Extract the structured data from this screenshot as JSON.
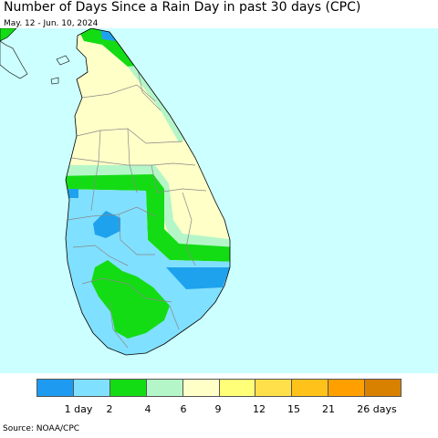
{
  "header": {
    "title": "Number of Days Since a Rain Day in past 30 days (CPC)",
    "subtitle": "May. 12 - Jun. 10, 2024"
  },
  "map": {
    "region": "Sri Lanka",
    "colors": {
      "sea": "#ccffff",
      "day_1": "#1fa2ee",
      "day_2": "#80e0ff",
      "day_4": "#14dc14",
      "day_6": "#b4f6c8",
      "day_9": "#ffffc8",
      "gray_border": "#888888"
    }
  },
  "legend": {
    "colors": [
      "#1e9af0",
      "#80e0ff",
      "#14dc14",
      "#b4f6c8",
      "#ffffc8",
      "#ffff78",
      "#ffe04a",
      "#ffc21a",
      "#ffa000",
      "#d88000"
    ],
    "labels": [
      "1 day",
      "2",
      "4",
      "6",
      "9",
      "12",
      "15",
      "21",
      "26 days"
    ]
  },
  "footer": {
    "source": "Source: NOAA/CPC"
  }
}
